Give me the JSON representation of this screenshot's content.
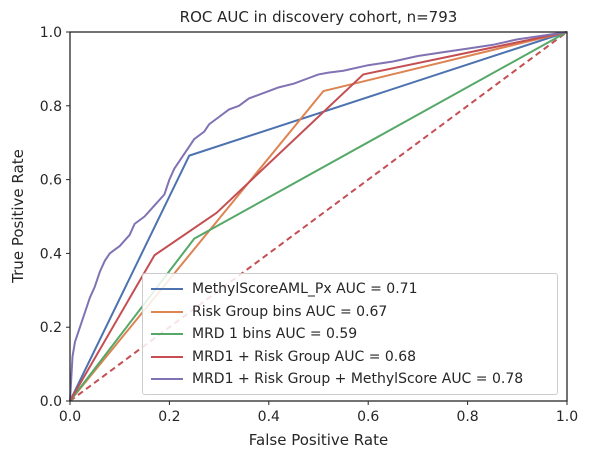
{
  "chart_data": {
    "type": "line",
    "title": "ROC AUC in discovery cohort, n=793",
    "xlabel": "False Positive Rate",
    "ylabel": "True Positive Rate",
    "xlim": [
      0.0,
      1.0
    ],
    "ylim": [
      0.0,
      1.0
    ],
    "xticks": [
      "0.0",
      "0.2",
      "0.4",
      "0.6",
      "0.8",
      "1.0"
    ],
    "yticks": [
      "0.0",
      "0.2",
      "0.4",
      "0.6",
      "0.8",
      "1.0"
    ],
    "grid": false,
    "legend_position": "lower-right",
    "reference_line": {
      "x": [
        0,
        1
      ],
      "y": [
        0,
        1
      ],
      "color": "#c44e52",
      "style": "dashed"
    },
    "series": [
      {
        "name": "MethylScoreAML_Px AUC = 0.71",
        "color": "#4c72b0",
        "x": [
          0,
          0.24,
          1.0
        ],
        "y": [
          0,
          0.665,
          1.0
        ]
      },
      {
        "name": "Risk Group bins AUC = 0.67",
        "color": "#dd8452",
        "x": [
          0,
          0.51,
          1.0
        ],
        "y": [
          0,
          0.84,
          1.0
        ]
      },
      {
        "name": "MRD 1 bins AUC = 0.59",
        "color": "#55a868",
        "x": [
          0,
          0.25,
          1.0
        ],
        "y": [
          0,
          0.44,
          1.0
        ]
      },
      {
        "name": "MRD1 + Risk Group AUC = 0.68",
        "color": "#c44e52",
        "x": [
          0,
          0.17,
          0.295,
          0.59,
          1.0
        ],
        "y": [
          0,
          0.395,
          0.51,
          0.885,
          1.0
        ]
      },
      {
        "name": "MRD1 + Risk Group + MethylScore AUC = 0.78",
        "color": "#8172b3",
        "x": [
          0,
          0.005,
          0.01,
          0.02,
          0.03,
          0.04,
          0.05,
          0.06,
          0.07,
          0.08,
          0.09,
          0.1,
          0.12,
          0.13,
          0.15,
          0.17,
          0.19,
          0.2,
          0.21,
          0.22,
          0.24,
          0.25,
          0.27,
          0.28,
          0.3,
          0.32,
          0.34,
          0.36,
          0.4,
          0.42,
          0.45,
          0.48,
          0.5,
          0.52,
          0.55,
          0.6,
          0.65,
          0.7,
          0.75,
          0.8,
          0.85,
          0.9,
          0.95,
          1.0
        ],
        "y": [
          0,
          0.12,
          0.16,
          0.2,
          0.24,
          0.28,
          0.31,
          0.35,
          0.38,
          0.4,
          0.41,
          0.42,
          0.45,
          0.48,
          0.5,
          0.53,
          0.56,
          0.6,
          0.63,
          0.65,
          0.69,
          0.71,
          0.73,
          0.75,
          0.77,
          0.79,
          0.8,
          0.82,
          0.84,
          0.85,
          0.86,
          0.875,
          0.885,
          0.89,
          0.895,
          0.91,
          0.92,
          0.935,
          0.945,
          0.955,
          0.965,
          0.98,
          0.99,
          1.0
        ]
      }
    ]
  }
}
